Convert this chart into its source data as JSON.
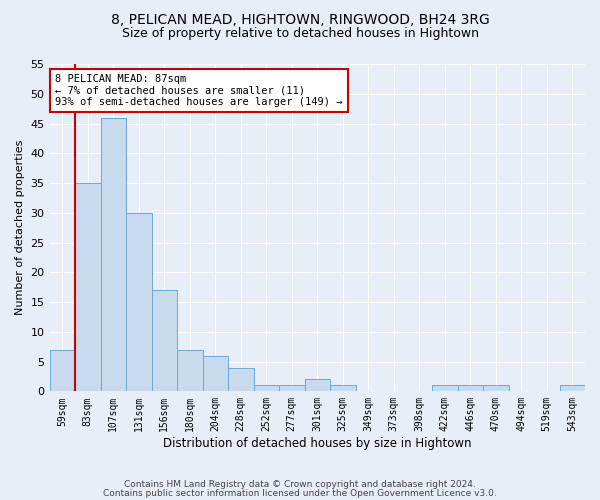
{
  "title1": "8, PELICAN MEAD, HIGHTOWN, RINGWOOD, BH24 3RG",
  "title2": "Size of property relative to detached houses in Hightown",
  "xlabel": "Distribution of detached houses by size in Hightown",
  "ylabel": "Number of detached properties",
  "categories": [
    "59sqm",
    "83sqm",
    "107sqm",
    "131sqm",
    "156sqm",
    "180sqm",
    "204sqm",
    "228sqm",
    "252sqm",
    "277sqm",
    "301sqm",
    "325sqm",
    "349sqm",
    "373sqm",
    "398sqm",
    "422sqm",
    "446sqm",
    "470sqm",
    "494sqm",
    "519sqm",
    "543sqm"
  ],
  "values": [
    7,
    35,
    46,
    30,
    17,
    7,
    6,
    4,
    1,
    1,
    2,
    1,
    0,
    0,
    0,
    1,
    1,
    1,
    0,
    0,
    1
  ],
  "bar_color": "#c8daee",
  "bar_edge_color": "#6aaad4",
  "highlight_bar_idx": 1,
  "highlight_color": "#cc0000",
  "annotation_text": "8 PELICAN MEAD: 87sqm\n← 7% of detached houses are smaller (11)\n93% of semi-detached houses are larger (149) →",
  "ylim": [
    0,
    55
  ],
  "yticks": [
    0,
    5,
    10,
    15,
    20,
    25,
    30,
    35,
    40,
    45,
    50,
    55
  ],
  "footnote1": "Contains HM Land Registry data © Crown copyright and database right 2024.",
  "footnote2": "Contains public sector information licensed under the Open Government Licence v3.0.",
  "bg_color": "#e8eef8",
  "plot_bg_color": "#e8eef8"
}
